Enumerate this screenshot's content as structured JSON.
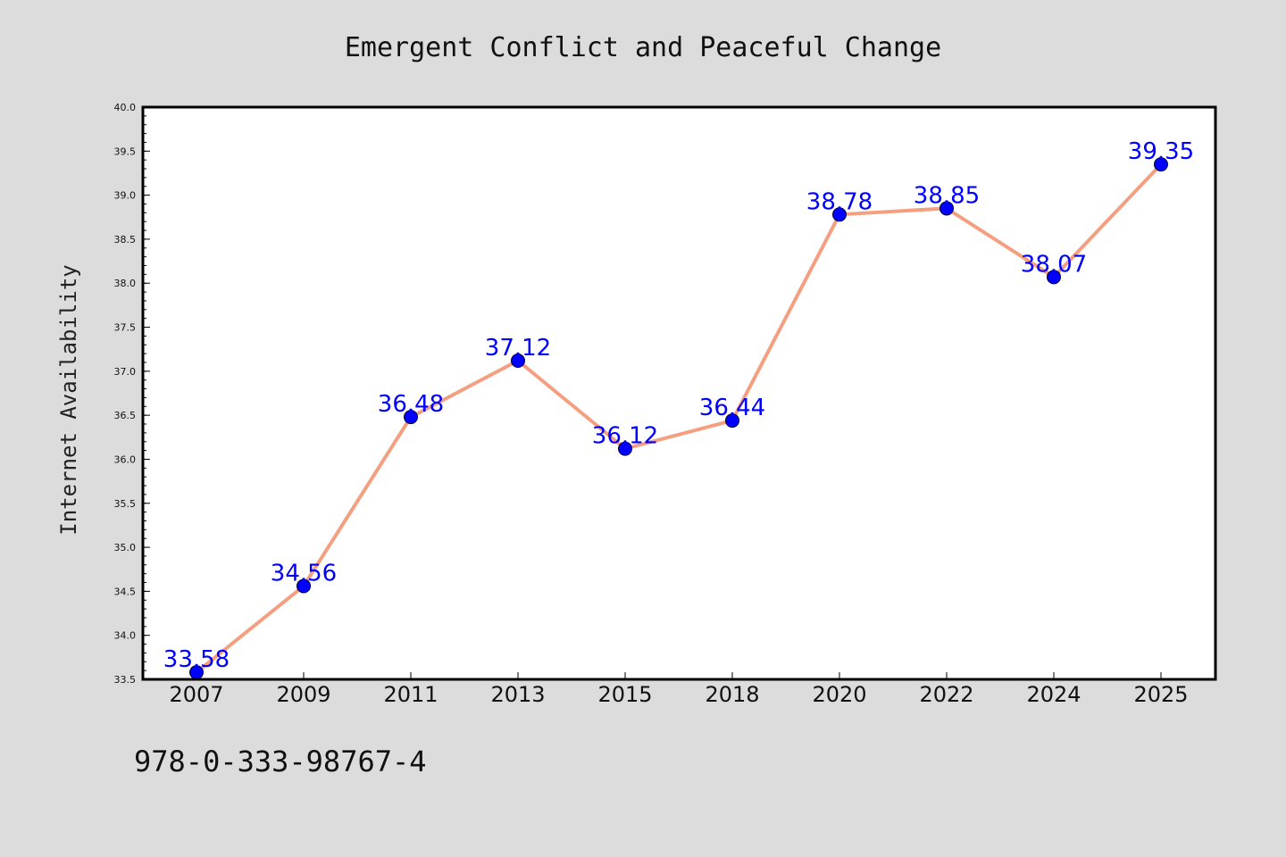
{
  "chart_data": {
    "type": "line",
    "title": "Emergent Conflict and Peaceful Change",
    "xlabel": "",
    "ylabel": "Internet Availability",
    "categories": [
      "2007",
      "2009",
      "2011",
      "2013",
      "2015",
      "2018",
      "2020",
      "2022",
      "2024",
      "2025"
    ],
    "series": [
      {
        "values": [
          33.58,
          34.56,
          36.48,
          37.12,
          36.12,
          36.44,
          38.78,
          38.85,
          38.07,
          39.35
        ],
        "labels": [
          "33.58",
          "34.56",
          "36.48",
          "37.12",
          "36.12",
          "36.44",
          "38.78",
          "38.85",
          "38.07",
          "39.35"
        ],
        "line_color": "#f4a080",
        "marker_color": "#0000ff"
      }
    ],
    "ylim": [
      33.5,
      40.0
    ],
    "yticks": [
      "33.5",
      "34.0",
      "34.5",
      "35.0",
      "35.5",
      "36.0",
      "36.5",
      "37.0",
      "37.5",
      "38.0",
      "38.5",
      "39.0",
      "39.5",
      "40.0"
    ],
    "grid": false,
    "legend": "none"
  },
  "footer": {
    "isbn": "978-0-333-98767-4"
  },
  "colors": {
    "background": "#dcdcdc",
    "plot_background": "#ffffff",
    "line": "#f4a080",
    "marker": "#0000ff",
    "data_label": "#0000ff"
  }
}
